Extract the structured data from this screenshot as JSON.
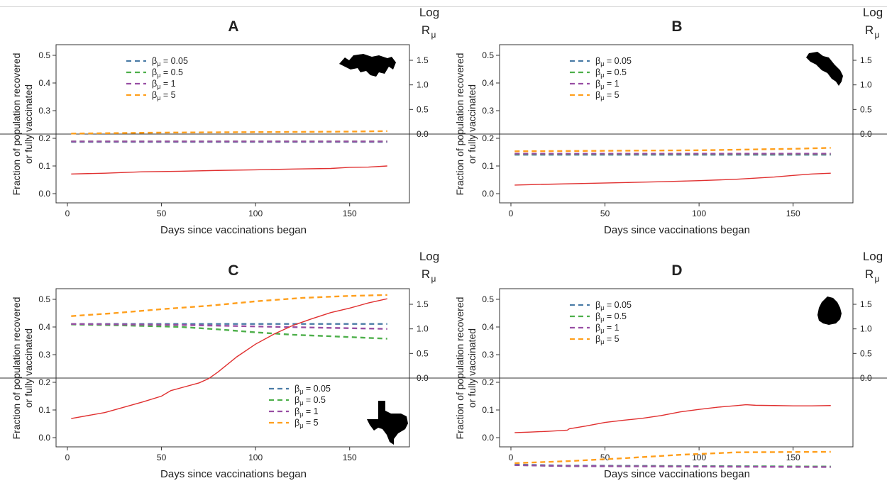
{
  "chart_data": [
    {
      "type": "line",
      "title": "A",
      "xlabel": "Days since vaccinations began",
      "ylabel": [
        "Fraction of population recovered",
        "or fully vaccinated"
      ],
      "y2label": [
        "Log",
        "R",
        "μ"
      ],
      "xlim": [
        0,
        175
      ],
      "xticks": [
        0,
        50,
        100,
        150
      ],
      "ylim": [
        0,
        0.5
      ],
      "yticks": [
        "0.0",
        "0.1",
        "0.2",
        "0.3",
        "0.4",
        "0.5"
      ],
      "y2lim": [
        -2.0,
        1.75
      ],
      "y2ticks": [
        "0.0",
        "0.5",
        "1.0",
        "1.5"
      ],
      "y2ref": 0.0,
      "legend_position": "top-left",
      "map_shape": "panama",
      "series": [
        {
          "name": "0.05",
          "axis": "right",
          "color": "#4a7ba6",
          "dash": true,
          "x": [
            2,
            170
          ],
          "y": [
            -0.16,
            -0.16
          ]
        },
        {
          "name": "0.5",
          "axis": "right",
          "color": "#4daf4a",
          "dash": true,
          "x": [
            2,
            170
          ],
          "y": [
            -0.15,
            -0.15
          ]
        },
        {
          "name": "1",
          "axis": "right",
          "color": "#984ea3",
          "dash": true,
          "x": [
            2,
            170
          ],
          "y": [
            -0.15,
            -0.15
          ]
        },
        {
          "name": "5",
          "axis": "right",
          "color": "#ff9f1c",
          "dash": true,
          "x": [
            2,
            50,
            100,
            150,
            170
          ],
          "y": [
            0.01,
            0.03,
            0.04,
            0.05,
            0.06
          ]
        },
        {
          "name": "",
          "axis": "left",
          "color": "#e03030",
          "dash": false,
          "x": [
            2,
            20,
            40,
            60,
            80,
            100,
            120,
            140,
            150,
            160,
            170
          ],
          "y": [
            0.071,
            0.074,
            0.079,
            0.081,
            0.084,
            0.086,
            0.089,
            0.091,
            0.095,
            0.096,
            0.1
          ]
        }
      ]
    },
    {
      "type": "line",
      "title": "B",
      "xlabel": "Days since vaccinations began",
      "ylabel": [
        "Fraction of population recovered",
        "or fully vaccinated"
      ],
      "y2label": [
        "Log",
        "R",
        "μ"
      ],
      "xlim": [
        0,
        175
      ],
      "xticks": [
        0,
        50,
        100,
        150
      ],
      "ylim": [
        0,
        0.5
      ],
      "yticks": [
        "0.0",
        "0.1",
        "0.2",
        "0.3",
        "0.4",
        "0.5"
      ],
      "y2lim": [
        -2.0,
        1.75
      ],
      "y2ticks": [
        "0.0",
        "0.5",
        "1.0",
        "1.5"
      ],
      "y2ref": 0.0,
      "legend_position": "top-left",
      "map_shape": "costa-rica",
      "series": [
        {
          "name": "0.05",
          "axis": "right",
          "color": "#4a7ba6",
          "dash": true,
          "x": [
            2,
            170
          ],
          "y": [
            -0.42,
            -0.42
          ]
        },
        {
          "name": "0.5",
          "axis": "right",
          "color": "#4daf4a",
          "dash": true,
          "x": [
            2,
            170
          ],
          "y": [
            -0.41,
            -0.41
          ]
        },
        {
          "name": "1",
          "axis": "right",
          "color": "#984ea3",
          "dash": true,
          "x": [
            2,
            170
          ],
          "y": [
            -0.4,
            -0.4
          ]
        },
        {
          "name": "5",
          "axis": "right",
          "color": "#ff9f1c",
          "dash": true,
          "x": [
            2,
            50,
            100,
            150,
            170
          ],
          "y": [
            -0.35,
            -0.34,
            -0.33,
            -0.3,
            -0.28
          ]
        },
        {
          "name": "",
          "axis": "left",
          "color": "#e03030",
          "dash": false,
          "x": [
            2,
            20,
            40,
            60,
            80,
            100,
            120,
            140,
            150,
            160,
            170
          ],
          "y": [
            0.031,
            0.034,
            0.037,
            0.04,
            0.043,
            0.047,
            0.052,
            0.06,
            0.066,
            0.071,
            0.074
          ]
        }
      ]
    },
    {
      "type": "line",
      "title": "C",
      "xlabel": "Days since vaccinations began",
      "ylabel": [
        "Fraction of population recovered",
        "or fully vaccinated"
      ],
      "y2label": [
        "Log",
        "R",
        "μ"
      ],
      "xlim": [
        0,
        175
      ],
      "xticks": [
        0,
        50,
        100,
        150
      ],
      "ylim": [
        0,
        0.5
      ],
      "yticks": [
        "0.0",
        "0.1",
        "0.2",
        "0.3",
        "0.4",
        "0.5"
      ],
      "y2lim": [
        -2.0,
        1.75
      ],
      "y2ticks": [
        "0.0",
        "0.5",
        "1.0",
        "1.5"
      ],
      "y2ref": 0.0,
      "legend_position": "bottom-center",
      "map_shape": "texas",
      "series": [
        {
          "name": "0.05",
          "axis": "right",
          "color": "#4a7ba6",
          "dash": true,
          "x": [
            2,
            60,
            120,
            170
          ],
          "y": [
            1.1,
            1.1,
            1.1,
            1.1
          ]
        },
        {
          "name": "0.5",
          "axis": "right",
          "color": "#4daf4a",
          "dash": true,
          "x": [
            2,
            30,
            60,
            80,
            100,
            120,
            140,
            170
          ],
          "y": [
            1.09,
            1.07,
            1.04,
            0.99,
            0.93,
            0.88,
            0.85,
            0.8
          ]
        },
        {
          "name": "1",
          "axis": "right",
          "color": "#984ea3",
          "dash": true,
          "x": [
            2,
            60,
            100,
            140,
            170
          ],
          "y": [
            1.1,
            1.08,
            1.05,
            1.02,
            1.0
          ]
        },
        {
          "name": "5",
          "axis": "right",
          "color": "#ff9f1c",
          "dash": true,
          "x": [
            2,
            25,
            50,
            75,
            100,
            125,
            150,
            170
          ],
          "y": [
            1.26,
            1.32,
            1.4,
            1.47,
            1.56,
            1.63,
            1.67,
            1.69
          ]
        },
        {
          "name": "",
          "axis": "left",
          "color": "#e03030",
          "dash": false,
          "x": [
            2,
            20,
            40,
            50,
            55,
            70,
            75,
            80,
            90,
            100,
            110,
            120,
            130,
            140,
            150,
            160,
            170
          ],
          "y": [
            0.069,
            0.091,
            0.129,
            0.15,
            0.17,
            0.198,
            0.213,
            0.237,
            0.292,
            0.338,
            0.375,
            0.406,
            0.43,
            0.452,
            0.468,
            0.487,
            0.502
          ]
        }
      ]
    },
    {
      "type": "line",
      "title": "D",
      "xlabel": "Days since vaccinations began",
      "ylabel": [
        "Fraction of population recovered",
        "or fully vaccinated"
      ],
      "y2label": [
        "Log",
        "R",
        "μ"
      ],
      "xlim": [
        0,
        175
      ],
      "xticks": [
        0,
        50,
        100,
        150
      ],
      "ylim": [
        0,
        0.5
      ],
      "yticks": [
        "0.0",
        "0.1",
        "0.2",
        "0.3",
        "0.4",
        "0.5"
      ],
      "y2lim": [
        -2.0,
        1.75
      ],
      "y2ticks": [
        "0.0",
        "0.5",
        "1.0",
        "1.5"
      ],
      "y2ref": 0.0,
      "legend_position": "top-left",
      "map_shape": "uruguay",
      "series": [
        {
          "name": "0.05",
          "axis": "right",
          "color": "#4a7ba6",
          "dash": true,
          "x": [
            2,
            30,
            170
          ],
          "y": [
            -1.76,
            -1.78,
            -1.8
          ]
        },
        {
          "name": "0.5",
          "axis": "right",
          "color": "#4daf4a",
          "dash": true,
          "x": [
            2,
            30,
            170
          ],
          "y": [
            -1.77,
            -1.79,
            -1.8
          ]
        },
        {
          "name": "1",
          "axis": "right",
          "color": "#984ea3",
          "dash": true,
          "x": [
            2,
            30,
            170
          ],
          "y": [
            -1.77,
            -1.79,
            -1.81
          ]
        },
        {
          "name": "5",
          "axis": "right",
          "color": "#ff9f1c",
          "dash": true,
          "x": [
            2,
            30,
            60,
            90,
            120,
            170
          ],
          "y": [
            -1.73,
            -1.69,
            -1.63,
            -1.56,
            -1.51,
            -1.5
          ]
        },
        {
          "name": "",
          "axis": "left",
          "color": "#e03030",
          "dash": false,
          "x": [
            2,
            10,
            20,
            30,
            31,
            40,
            50,
            60,
            70,
            80,
            90,
            100,
            110,
            120,
            125,
            130,
            140,
            150,
            160,
            170
          ],
          "y": [
            0.018,
            0.02,
            0.023,
            0.027,
            0.032,
            0.042,
            0.055,
            0.063,
            0.07,
            0.08,
            0.093,
            0.102,
            0.11,
            0.116,
            0.119,
            0.117,
            0.116,
            0.115,
            0.115,
            0.116
          ]
        }
      ]
    }
  ]
}
